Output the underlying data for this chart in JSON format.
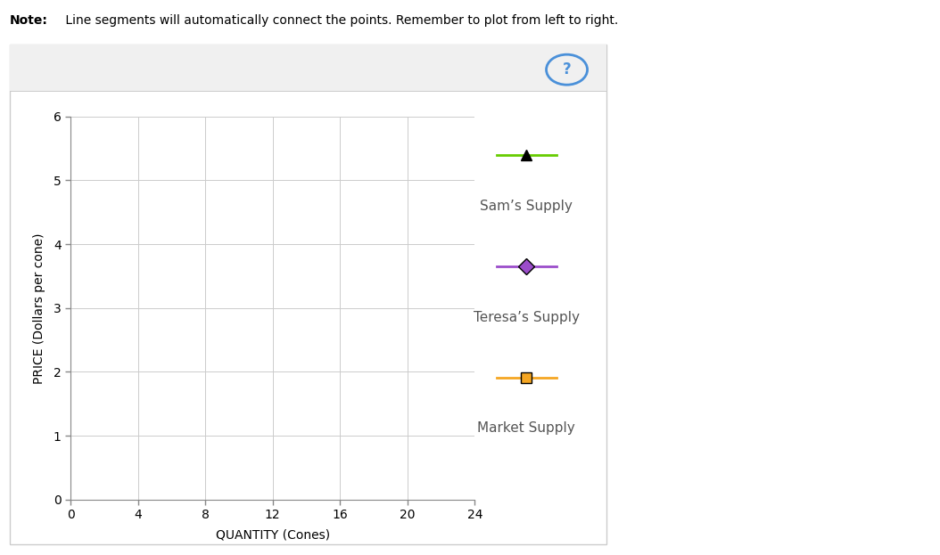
{
  "note_bold": "Note:",
  "note_rest": " Line segments will automatically connect the points. Remember to plot from left to right.",
  "xlabel": "QUANTITY (Cones)",
  "ylabel": "PRICE (Dollars per cone)",
  "xlim": [
    0,
    24
  ],
  "ylim": [
    0,
    6
  ],
  "xticks": [
    0,
    4,
    8,
    12,
    16,
    20,
    24
  ],
  "yticks": [
    0,
    1,
    2,
    3,
    4,
    5,
    6
  ],
  "grid_color": "#cccccc",
  "fig_bg": "#ffffff",
  "card_bg": "#ffffff",
  "card_border": "#cccccc",
  "legend_entries": [
    {
      "label": "Sam’s Supply",
      "line_color": "#66cc00",
      "marker": "^",
      "marker_facecolor": "#000000",
      "marker_edgecolor": "#000000",
      "marker_size": 9
    },
    {
      "label": "Teresa’s Supply",
      "line_color": "#9b4dca",
      "marker": "D",
      "marker_facecolor": "#9b4dca",
      "marker_edgecolor": "#000000",
      "marker_size": 9
    },
    {
      "label": "Market Supply",
      "line_color": "#f5a623",
      "marker": "s",
      "marker_facecolor": "#f5a623",
      "marker_edgecolor": "#000000",
      "marker_size": 9
    }
  ],
  "note_fontsize": 10,
  "axis_label_fontsize": 10,
  "tick_fontsize": 10,
  "legend_label_fontsize": 11,
  "legend_label_color": "#555555",
  "question_mark_color": "#4a90d9",
  "top_bar_color": "#f0f0f0",
  "top_bar_border": "#cccccc"
}
